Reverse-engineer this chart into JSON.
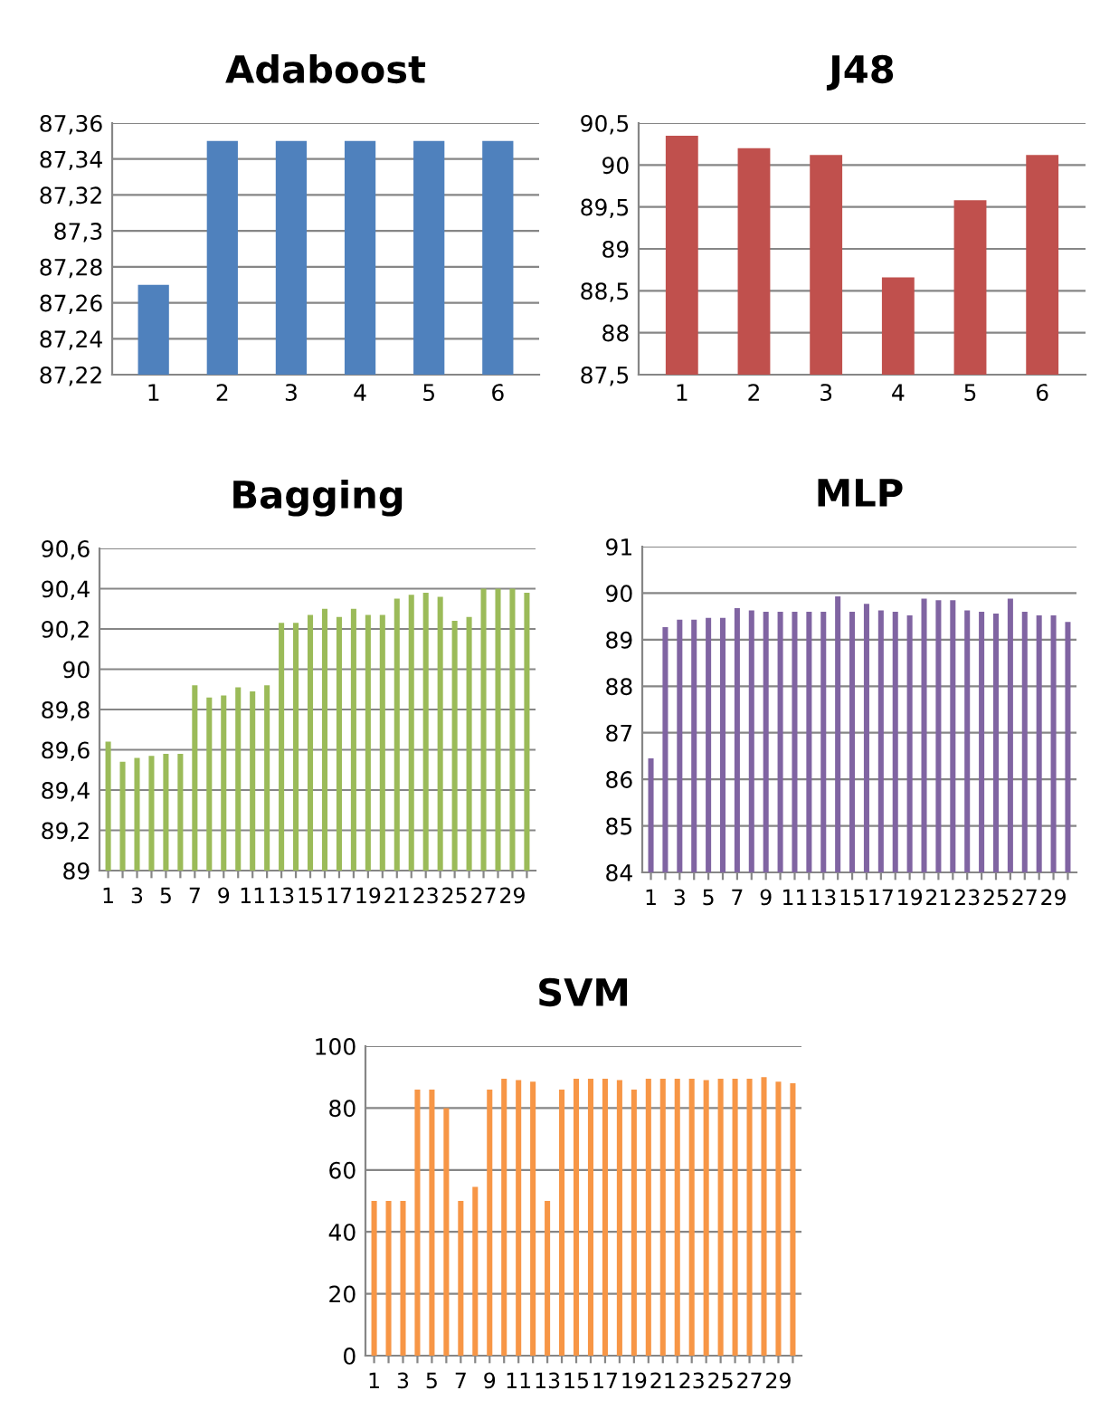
{
  "chart_data": [
    {
      "type": "bar",
      "title": "Adaboost",
      "categories": [
        "1",
        "2",
        "3",
        "4",
        "5",
        "6"
      ],
      "values": [
        87.27,
        87.35,
        87.35,
        87.35,
        87.35,
        87.35
      ],
      "color": "#4f81bd",
      "ylim": [
        87.22,
        87.36
      ],
      "yticks": [
        {
          "value": 87.22,
          "label": "87,22"
        },
        {
          "value": 87.24,
          "label": "87,24"
        },
        {
          "value": 87.26,
          "label": "87,26"
        },
        {
          "value": 87.28,
          "label": "87,28"
        },
        {
          "value": 87.3,
          "label": "87,3"
        },
        {
          "value": 87.32,
          "label": "87,32"
        },
        {
          "value": 87.34,
          "label": "87,34"
        },
        {
          "value": 87.36,
          "label": "87,36"
        }
      ],
      "grid": "y"
    },
    {
      "type": "bar",
      "title": "J48",
      "categories": [
        "1",
        "2",
        "3",
        "4",
        "5",
        "6"
      ],
      "values": [
        90.35,
        90.2,
        90.12,
        88.66,
        89.58,
        90.12
      ],
      "color": "#c0504d",
      "ylim": [
        87.5,
        90.5
      ],
      "yticks": [
        {
          "value": 87.5,
          "label": "87,5"
        },
        88,
        {
          "value": 88.5,
          "label": "88,5"
        },
        89,
        {
          "value": 89.5,
          "label": "89,5"
        },
        90,
        {
          "value": 90.5,
          "label": "90,5"
        }
      ],
      "grid": "y"
    },
    {
      "type": "bar",
      "title": "Bagging",
      "categories": [
        "1",
        null,
        "3",
        null,
        "5",
        null,
        "7",
        null,
        "9",
        null,
        "11",
        null,
        "13",
        null,
        "15",
        null,
        "17",
        null,
        "19",
        null,
        "21",
        null,
        "23",
        null,
        "25",
        null,
        "27",
        null,
        "29",
        null
      ],
      "values": [
        89.64,
        89.54,
        89.56,
        89.57,
        89.58,
        89.58,
        89.92,
        89.86,
        89.87,
        89.91,
        89.89,
        89.92,
        90.23,
        90.23,
        90.27,
        90.3,
        90.26,
        90.3,
        90.27,
        90.27,
        90.35,
        90.37,
        90.38,
        90.36,
        90.24,
        90.26,
        90.4,
        90.4,
        90.4,
        90.38
      ],
      "color": "#9bbb59",
      "ylim": [
        89,
        90.6
      ],
      "yticks": [
        89,
        {
          "value": 89.2,
          "label": "89,2"
        },
        {
          "value": 89.4,
          "label": "89,4"
        },
        {
          "value": 89.6,
          "label": "89,6"
        },
        {
          "value": 89.8,
          "label": "89,8"
        },
        90,
        {
          "value": 90.2,
          "label": "90,2"
        },
        {
          "value": 90.4,
          "label": "90,4"
        },
        {
          "value": 90.6,
          "label": "90,6"
        }
      ],
      "grid": "y"
    },
    {
      "type": "bar",
      "title": "MLP",
      "categories": [
        "1",
        null,
        "3",
        null,
        "5",
        null,
        "7",
        null,
        "9",
        null,
        "11",
        null,
        "13",
        null,
        "15",
        null,
        "17",
        null,
        "19",
        null,
        "21",
        null,
        "23",
        null,
        "25",
        null,
        "27",
        null,
        "29",
        null
      ],
      "values": [
        86.45,
        89.27,
        89.43,
        89.43,
        89.47,
        89.47,
        89.68,
        89.63,
        89.6,
        89.6,
        89.6,
        89.6,
        89.6,
        89.93,
        89.6,
        89.77,
        89.63,
        89.6,
        89.52,
        89.88,
        89.85,
        89.85,
        89.63,
        89.6,
        89.56,
        89.88,
        89.6,
        89.52,
        89.52,
        89.38
      ],
      "color": "#8064a2",
      "ylim": [
        84,
        91
      ],
      "yticks": [
        84,
        85,
        86,
        87,
        88,
        89,
        90,
        91
      ],
      "grid": "y"
    },
    {
      "type": "bar",
      "title": "SVM",
      "categories": [
        "1",
        null,
        "3",
        null,
        "5",
        null,
        "7",
        null,
        "9",
        null,
        "11",
        null,
        "13",
        null,
        "15",
        null,
        "17",
        null,
        "19",
        null,
        "21",
        null,
        "23",
        null,
        "25",
        null,
        "27",
        null,
        "29",
        null
      ],
      "values": [
        50,
        50,
        50,
        86,
        86,
        80,
        50,
        54.5,
        86,
        89.5,
        89,
        88.5,
        50,
        86,
        89.5,
        89.5,
        89.5,
        89,
        86,
        89.5,
        89.5,
        89.5,
        89.5,
        89,
        89.5,
        89.5,
        89.5,
        90,
        88.5,
        88
      ],
      "color": "#f79646",
      "ylim": [
        0,
        100
      ],
      "yticks": [
        0,
        20,
        40,
        60,
        80,
        100
      ],
      "grid": "y"
    }
  ]
}
